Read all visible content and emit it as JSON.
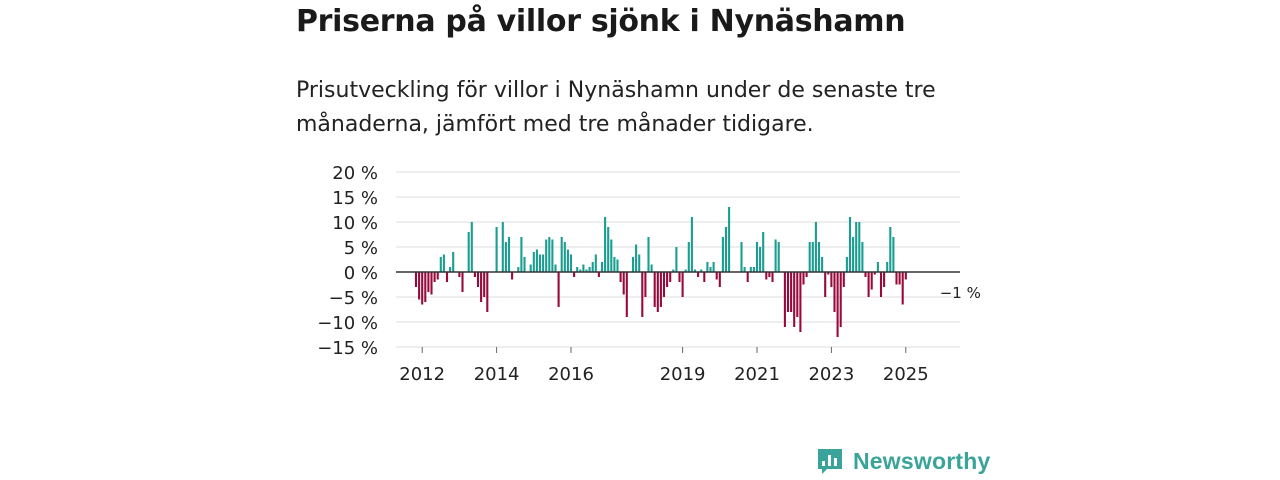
{
  "header": {
    "title": "Priserna på villor sjönk i Nynäshamn",
    "subtitle": "Prisutveckling för villor i Nynäshamn under de senaste tre månaderna, jämfört med tre månader tidigare."
  },
  "colors": {
    "positive": "#1a9e91",
    "negative": "#990a3c",
    "grid": "#dddddd",
    "brand": "#3aa39a"
  },
  "brand": {
    "name": "Newsworthy",
    "icon": "newsworthy-logo-icon"
  },
  "chart_data": {
    "type": "bar",
    "title": "Priserna på villor sjönk i Nynäshamn",
    "xlabel": "",
    "ylabel": "",
    "ylim": [
      -15,
      20
    ],
    "yticks": [
      20,
      15,
      10,
      5,
      0,
      -5,
      -10,
      -15
    ],
    "ytick_labels": [
      "20 %",
      "15 %",
      "10 %",
      "5 %",
      "0 %",
      "−5 %",
      "−10 %",
      "−15 %"
    ],
    "xticks": [
      2012,
      2014,
      2016,
      2019,
      2021,
      2023,
      2025
    ],
    "xtick_labels": [
      "2012",
      "2014",
      "2016",
      "2019",
      "2021",
      "2023",
      "2025"
    ],
    "grid": true,
    "start": "2011-11",
    "unit": "%",
    "annotation": {
      "label": "−1 %",
      "value": -1,
      "period": "2025-10"
    },
    "values": [
      -3,
      -5.5,
      -6.5,
      -6,
      -4,
      -4.5,
      -2,
      -1.5,
      3,
      3.5,
      -2,
      1,
      4,
      0,
      -1,
      -4,
      0,
      8,
      10,
      -1,
      -3,
      -6,
      -5,
      -8,
      0,
      0,
      9,
      0,
      10,
      6,
      7,
      -1.5,
      0,
      1,
      7,
      3,
      0,
      1.5,
      4,
      4.5,
      3.5,
      3.5,
      6.5,
      7,
      6.5,
      1.5,
      -7,
      7,
      6,
      4.5,
      3.5,
      -1,
      1,
      0.5,
      1.5,
      0.5,
      1,
      2,
      3.5,
      -1,
      2,
      11,
      9,
      6.5,
      3,
      2.5,
      -2,
      -4.5,
      -9,
      0,
      3,
      5.5,
      3.5,
      -9,
      -5,
      7,
      1.5,
      -7,
      -8,
      -7,
      -5,
      -3,
      -2,
      0.5,
      5,
      -2,
      -5,
      0.5,
      6,
      11,
      0.5,
      -1,
      0.5,
      -2,
      2,
      1,
      2,
      -1.5,
      -3,
      7,
      9,
      13,
      0,
      0,
      0,
      6,
      1,
      -2,
      1,
      1,
      6,
      5,
      8,
      -1.5,
      -1,
      -2,
      6.5,
      6,
      0,
      -11,
      -8,
      -8,
      -11,
      -9,
      -12,
      -2.5,
      -1,
      6,
      6,
      10,
      6,
      3,
      -5,
      -0.5,
      -3,
      -8,
      -13,
      -11,
      -3,
      3,
      11,
      7,
      10,
      10,
      6,
      -1,
      -5,
      -3.5,
      -0.5,
      2,
      -5,
      -3,
      2,
      9,
      7,
      -2.5,
      -2.5,
      -6.5,
      -1.5
    ]
  }
}
